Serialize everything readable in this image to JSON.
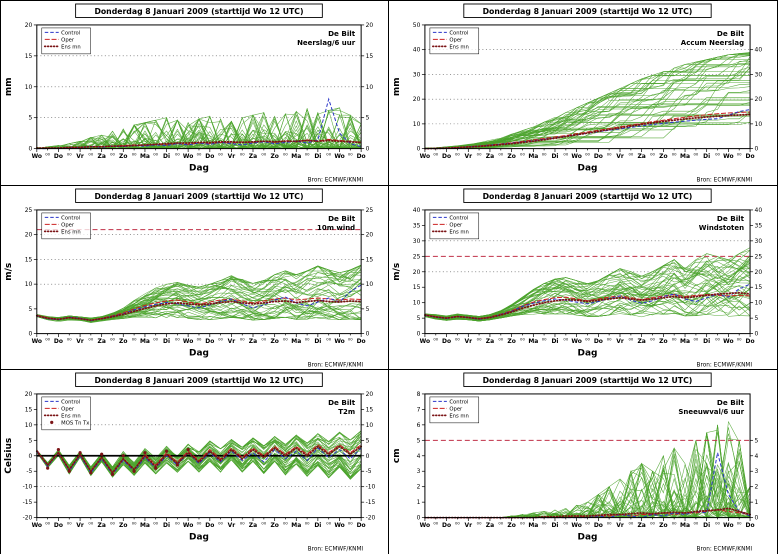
{
  "shared": {
    "title": "Donderdag  8 Januari  2009  (starttijd  Wo 12 UTC)",
    "station": "De Bilt",
    "source": "Bron: ECMWF/KNMI",
    "x_label": "Dag",
    "day_labels": [
      "Wo",
      "Do",
      "Vr",
      "Za",
      "Zo",
      "Ma",
      "Di",
      "Wo",
      "Do",
      "Vr",
      "Za",
      "Zo",
      "Ma",
      "Di",
      "Wo",
      "Do"
    ],
    "minor_hour_label": "00",
    "x_step_days": 0.5,
    "x_max_days": 15,
    "legend_labels": {
      "control": "Control",
      "oper": "Oper",
      "ens_mean": "Ens mn",
      "mos": "MOS Tn Tx"
    },
    "colors": {
      "member": "#4aa32b",
      "control": "#2a35c8",
      "oper": "#cc2020",
      "ens_mean": "#7b1416",
      "threshold": "#c03048",
      "gridline": "#555555",
      "source_text": "#2233cc",
      "frame": "#000000"
    }
  },
  "chart_data": [
    {
      "type": "line",
      "variable": "Neerslag/6 uur",
      "ylabel": "mm",
      "ylim": [
        0,
        20
      ],
      "yticks_left": [
        0,
        5,
        10,
        15,
        20
      ],
      "yticks_right": [
        0,
        5,
        10,
        15,
        20
      ],
      "dotted_gridlines": [
        5,
        10,
        15
      ],
      "threshold": null,
      "zero_line": false,
      "member_style": "spiky",
      "members_count": 46,
      "monotonic": false,
      "legend": [
        "control",
        "oper",
        "ens_mean"
      ],
      "series": {
        "ens_mean": [
          0.1,
          0.1,
          0.1,
          0.2,
          0.2,
          0.3,
          0.3,
          0.4,
          0.4,
          0.5,
          0.6,
          0.7,
          0.8,
          0.9,
          0.9,
          1.0,
          1.0,
          1.1,
          1.1,
          1.0,
          1.1,
          1.2,
          1.1,
          1.2,
          1.2,
          1.3,
          1.2,
          1.3,
          1.2,
          1.1,
          1.0
        ],
        "control": [
          0.0,
          0.0,
          0.1,
          0.1,
          0.2,
          0.3,
          0.2,
          0.4,
          0.3,
          0.5,
          0.4,
          0.6,
          0.5,
          0.8,
          0.6,
          0.9,
          0.7,
          1.0,
          0.8,
          0.6,
          0.9,
          1.1,
          0.8,
          1.0,
          1.2,
          0.9,
          1.4,
          8.0,
          2.5,
          0.8,
          0.3
        ],
        "oper": [
          0.0,
          0.1,
          0.1,
          0.2,
          0.2,
          0.3,
          0.3,
          0.4,
          0.5,
          0.6,
          0.5,
          0.7,
          0.6,
          0.8,
          0.7,
          0.9,
          0.8,
          1.0,
          0.9,
          1.1,
          1.0,
          1.2,
          1.0,
          1.3,
          1.1,
          1.4,
          1.2,
          1.5,
          1.3,
          1.2,
          1.0
        ]
      },
      "envelope": {
        "low": null,
        "high": [
          0.2,
          0.3,
          0.5,
          0.8,
          1.2,
          1.8,
          2.2,
          2.8,
          3.2,
          3.8,
          4.2,
          4.6,
          5.0,
          4.6,
          4.2,
          4.8,
          5.2,
          4.8,
          4.4,
          5.0,
          5.4,
          5.8,
          5.2,
          5.6,
          6.0,
          6.4,
          5.8,
          6.2,
          6.6,
          5.4,
          4.0
        ]
      }
    },
    {
      "type": "line",
      "variable": "Accum Neerslag",
      "ylabel": "mm",
      "ylim": [
        0,
        50
      ],
      "yticks_left": [
        0,
        10,
        20,
        30,
        40,
        50
      ],
      "yticks_right": [
        0,
        10,
        20,
        30,
        40
      ],
      "dotted_gridlines": [
        10,
        20,
        30,
        40
      ],
      "threshold": null,
      "zero_line": false,
      "member_style": "smooth",
      "members_count": 46,
      "monotonic": true,
      "legend": [
        "control",
        "oper",
        "ens_mean"
      ],
      "series": {
        "ens_mean": [
          0,
          0.1,
          0.2,
          0.4,
          0.6,
          0.9,
          1.2,
          1.6,
          2.0,
          2.5,
          3.0,
          3.6,
          4.2,
          4.9,
          5.6,
          6.3,
          7.0,
          7.7,
          8.4,
          9.1,
          9.8,
          10.4,
          11.0,
          11.5,
          12.0,
          12.4,
          12.8,
          13.1,
          13.4,
          13.6,
          13.8
        ],
        "control": [
          0,
          0.1,
          0.2,
          0.4,
          0.7,
          1.0,
          1.4,
          1.8,
          2.2,
          2.7,
          3.2,
          3.8,
          4.4,
          5.0,
          5.6,
          6.2,
          6.8,
          7.4,
          8.0,
          8.6,
          9.2,
          9.7,
          10.2,
          10.7,
          11.1,
          11.5,
          11.8,
          12.1,
          13.5,
          15.0,
          15.8
        ],
        "oper": [
          0,
          0.1,
          0.3,
          0.5,
          0.8,
          1.1,
          1.5,
          1.9,
          2.4,
          2.9,
          3.5,
          4.1,
          4.7,
          5.3,
          6.0,
          6.7,
          7.4,
          8.1,
          8.8,
          9.5,
          10.2,
          10.9,
          11.5,
          12.1,
          12.7,
          13.2,
          13.7,
          14.1,
          14.4,
          14.6,
          14.8
        ]
      },
      "envelope": {
        "low": [
          0,
          0,
          0,
          0.1,
          0.1,
          0.2,
          0.2,
          0.3,
          0.4,
          0.5,
          0.6,
          0.7,
          0.8,
          0.9,
          1.0,
          1.1,
          1.2,
          1.4,
          1.6,
          1.8,
          2.0,
          2.2,
          2.4,
          2.6,
          2.8,
          3.0,
          3.2,
          3.4,
          3.6,
          3.8,
          4.0
        ],
        "high": [
          0.2,
          0.4,
          0.8,
          1.2,
          1.8,
          2.5,
          3.5,
          4.5,
          6.0,
          7.5,
          9.0,
          11,
          13,
          15,
          17,
          19,
          21,
          23,
          25,
          27,
          29,
          30.5,
          32,
          33.5,
          35,
          36,
          37,
          38,
          39,
          39.5,
          40
        ]
      }
    },
    {
      "type": "line",
      "variable": "10m wind",
      "ylabel": "m/s",
      "ylim": [
        0,
        25
      ],
      "yticks_left": [
        0,
        5,
        10,
        15,
        20,
        25
      ],
      "yticks_right": [
        0,
        5,
        10,
        15,
        20,
        25
      ],
      "dotted_gridlines": [
        10,
        15,
        20
      ],
      "threshold": 21,
      "zero_line": false,
      "member_style": "smooth",
      "members_count": 46,
      "monotonic": false,
      "legend": [
        "control",
        "oper",
        "ens_mean"
      ],
      "series": {
        "ens_mean": [
          3.6,
          3.1,
          2.9,
          3.2,
          3.0,
          2.7,
          3.0,
          3.4,
          3.9,
          4.5,
          5.1,
          5.6,
          6.0,
          6.2,
          6.0,
          5.8,
          6.0,
          6.3,
          6.5,
          6.2,
          6.0,
          6.2,
          6.5,
          6.6,
          6.3,
          6.5,
          6.7,
          6.5,
          6.4,
          6.6,
          6.5
        ],
        "control": [
          3.6,
          3.0,
          2.8,
          3.3,
          3.1,
          2.6,
          3.0,
          3.5,
          4.0,
          4.8,
          5.4,
          5.9,
          6.3,
          6.0,
          5.6,
          5.2,
          5.8,
          6.5,
          7.0,
          6.0,
          5.2,
          5.8,
          6.8,
          7.4,
          6.2,
          5.6,
          6.4,
          7.2,
          6.4,
          8.5,
          9.8
        ],
        "oper": [
          3.7,
          3.2,
          2.9,
          3.3,
          3.1,
          2.7,
          3.1,
          3.6,
          4.2,
          5.0,
          5.7,
          6.2,
          6.6,
          6.8,
          6.4,
          6.0,
          6.4,
          6.8,
          7.0,
          6.6,
          6.2,
          6.6,
          7.0,
          7.2,
          6.8,
          7.0,
          7.2,
          7.0,
          6.8,
          7.0,
          6.9
        ]
      },
      "envelope": {
        "low": [
          3.3,
          2.7,
          2.4,
          2.7,
          2.6,
          2.2,
          2.5,
          2.8,
          3.0,
          3.2,
          3.2,
          3.0,
          3.0,
          3.0,
          2.8,
          2.6,
          2.6,
          2.8,
          3.0,
          2.8,
          2.5,
          2.6,
          2.8,
          3.0,
          2.6,
          2.6,
          2.8,
          2.6,
          2.5,
          2.6,
          2.5
        ],
        "high": [
          3.9,
          3.5,
          3.3,
          3.6,
          3.4,
          3.2,
          3.5,
          4.2,
          5.2,
          6.8,
          8.2,
          9.4,
          10.2,
          10.6,
          10.0,
          9.6,
          10.2,
          11.0,
          12.0,
          11.2,
          10.4,
          11.0,
          12.2,
          13.0,
          12.2,
          13.0,
          14.0,
          13.2,
          12.6,
          13.2,
          14.2
        ]
      }
    },
    {
      "type": "line",
      "variable": "Windstoten",
      "ylabel": "m/s",
      "ylim": [
        0,
        40
      ],
      "yticks_left": [
        0,
        5,
        10,
        15,
        20,
        25,
        30,
        35,
        40
      ],
      "yticks_right": [
        0,
        5,
        10,
        15,
        20,
        25,
        30,
        35,
        40
      ],
      "dotted_gridlines": [
        20,
        30
      ],
      "threshold": 25,
      "zero_line": false,
      "member_style": "smooth",
      "members_count": 46,
      "monotonic": false,
      "legend": [
        "control",
        "oper",
        "ens_mean"
      ],
      "series": {
        "ens_mean": [
          6.0,
          5.4,
          5.0,
          5.5,
          5.2,
          4.8,
          5.2,
          6.0,
          7.0,
          8.2,
          9.2,
          10.0,
          10.6,
          11.0,
          10.8,
          10.4,
          10.8,
          11.2,
          11.6,
          11.2,
          10.8,
          11.2,
          11.6,
          12.0,
          11.6,
          12.0,
          12.4,
          12.8,
          13.0,
          13.2,
          12.8
        ],
        "control": [
          6.0,
          5.3,
          4.9,
          5.5,
          5.2,
          4.6,
          5.2,
          6.2,
          7.2,
          8.8,
          9.8,
          10.6,
          11.2,
          10.8,
          10.2,
          9.6,
          10.4,
          11.4,
          12.2,
          10.8,
          9.8,
          10.6,
          12.0,
          12.8,
          11.2,
          10.4,
          11.6,
          12.8,
          11.8,
          14.5,
          16.0
        ],
        "oper": [
          6.1,
          5.5,
          5.1,
          5.6,
          5.3,
          4.9,
          5.4,
          6.3,
          7.4,
          9.0,
          10.2,
          11.0,
          11.6,
          11.8,
          11.2,
          10.6,
          11.2,
          11.8,
          12.2,
          11.6,
          11.0,
          11.6,
          12.2,
          12.6,
          12.0,
          12.4,
          12.6,
          12.4,
          12.2,
          12.4,
          12.2
        ]
      },
      "envelope": {
        "low": [
          5.4,
          4.6,
          4.2,
          4.6,
          4.4,
          4.0,
          4.4,
          5.0,
          5.6,
          6.0,
          6.0,
          6.0,
          6.0,
          6.0,
          5.6,
          5.2,
          5.2,
          5.6,
          6.0,
          5.6,
          5.0,
          5.2,
          5.6,
          6.0,
          5.2,
          5.2,
          5.6,
          5.2,
          5.0,
          5.2,
          5.0
        ],
        "high": [
          6.6,
          6.2,
          5.8,
          6.4,
          6.0,
          5.6,
          6.2,
          7.5,
          9.5,
          12,
          14.5,
          16.5,
          18,
          18.5,
          17.5,
          16.5,
          17.5,
          19.5,
          21.5,
          20.5,
          19,
          20.5,
          22.5,
          24.5,
          22.5,
          24.5,
          26.5,
          25.5,
          24.5,
          26.5,
          28.5
        ]
      }
    },
    {
      "type": "line",
      "variable": "T2m",
      "ylabel": "Celsius",
      "ylim": [
        -20,
        20
      ],
      "yticks_left": [
        -20,
        -15,
        -10,
        -5,
        0,
        5,
        10,
        15,
        20
      ],
      "yticks_right": [
        -20,
        -15,
        -10,
        -5,
        0,
        5,
        10,
        15,
        20
      ],
      "dotted_gridlines": [
        -10,
        10
      ],
      "threshold": null,
      "zero_line": true,
      "member_style": "smooth",
      "members_count": 46,
      "monotonic": false,
      "legend": [
        "control",
        "oper",
        "ens_mean",
        "mos"
      ],
      "series": {
        "ens_mean": [
          1.5,
          -3,
          1,
          -4.5,
          0.5,
          -5,
          -0.5,
          -5.5,
          -1,
          -4.5,
          0,
          -3.5,
          0.5,
          -2.5,
          1,
          -2,
          1.5,
          -1.5,
          2,
          -1,
          2,
          -0.5,
          2.5,
          0,
          2.5,
          0,
          3,
          0.5,
          3,
          0.5,
          3
        ],
        "control": [
          1.5,
          -3.5,
          1,
          -5,
          0,
          -5.5,
          -1,
          -6,
          -1.5,
          -5,
          -0.5,
          -4,
          0,
          -3,
          1,
          -2.5,
          1,
          -2,
          1.5,
          -1.5,
          1,
          -2,
          2,
          -1,
          1.5,
          -1.5,
          2.5,
          -0.5,
          2,
          -1,
          2.5
        ],
        "oper": [
          1.8,
          -3,
          1.2,
          -4.5,
          0.5,
          -5,
          -0.5,
          -5.5,
          -1,
          -4.5,
          0.5,
          -3,
          1,
          -2,
          1.5,
          -1.5,
          2,
          -1,
          2.5,
          -0.5,
          2.5,
          0,
          3,
          0.5,
          3,
          0.5,
          3.5,
          1,
          3.5,
          1,
          3.5
        ]
      },
      "envelope": {
        "low": [
          1,
          -4,
          0,
          -6,
          -0.5,
          -6.5,
          -2,
          -7,
          -3,
          -6.5,
          -2.5,
          -6,
          -2.5,
          -5.5,
          -2,
          -5.5,
          -2,
          -5.5,
          -1.5,
          -5.5,
          -2,
          -6,
          -2,
          -6.5,
          -3,
          -7,
          -3.5,
          -7.5,
          -4,
          -8,
          -4.5
        ],
        "high": [
          2,
          -2,
          2,
          -3,
          1.5,
          -3.5,
          1,
          -3.5,
          1.5,
          -2,
          2.5,
          -0.5,
          3.5,
          0.5,
          4,
          1.5,
          5,
          2.5,
          5.5,
          3,
          6,
          3.5,
          6.5,
          4,
          7,
          4.5,
          7.5,
          5,
          8,
          5.5,
          8.5
        ]
      },
      "mos_points": [
        [
          0.5,
          -4
        ],
        [
          1,
          2
        ],
        [
          1.5,
          -5
        ],
        [
          2,
          1
        ],
        [
          2.5,
          -5.5
        ],
        [
          3,
          0.5
        ],
        [
          3.5,
          -6
        ],
        [
          4,
          0
        ],
        [
          4.5,
          -5
        ],
        [
          5,
          1
        ],
        [
          5.5,
          -4
        ],
        [
          6,
          1.5
        ],
        [
          6.5,
          -3
        ],
        [
          7,
          2
        ]
      ]
    },
    {
      "type": "line",
      "variable": "Sneeuwval/6 uur",
      "ylabel": "cm",
      "ylim": [
        0,
        8
      ],
      "yticks_left": [
        0,
        1,
        2,
        3,
        4,
        5,
        6,
        7,
        8
      ],
      "yticks_right": [
        0,
        1,
        2,
        3,
        4,
        5
      ],
      "dotted_gridlines": [],
      "threshold": 5,
      "zero_line": false,
      "member_style": "spiky",
      "members_count": 46,
      "monotonic": false,
      "legend": [
        "control",
        "oper",
        "ens_mean"
      ],
      "series": {
        "ens_mean": [
          0,
          0,
          0,
          0,
          0,
          0,
          0,
          0,
          0,
          0,
          0,
          0.05,
          0.05,
          0.1,
          0.1,
          0.1,
          0.15,
          0.2,
          0.2,
          0.25,
          0.3,
          0.25,
          0.3,
          0.35,
          0.3,
          0.4,
          0.45,
          0.5,
          0.6,
          0.4,
          0.2
        ],
        "control": [
          0,
          0,
          0,
          0,
          0,
          0,
          0,
          0,
          0,
          0,
          0,
          0,
          0,
          0,
          0,
          0,
          0.1,
          0,
          0.2,
          0.1,
          0,
          0.2,
          0.1,
          0.3,
          0.2,
          0.4,
          0.3,
          4.2,
          1.5,
          0.4,
          0.1
        ],
        "oper": [
          0,
          0,
          0,
          0,
          0,
          0,
          0,
          0,
          0,
          0,
          0,
          0,
          0,
          0,
          0.1,
          0,
          0.1,
          0.1,
          0.2,
          0.1,
          0.2,
          0.2,
          0.3,
          0.2,
          0.3,
          0.3,
          0.4,
          0.5,
          0.4,
          0.3,
          0.2
        ]
      },
      "envelope": {
        "low": null,
        "high": [
          0,
          0,
          0,
          0,
          0,
          0,
          0,
          0,
          0.1,
          0.2,
          0.3,
          0.4,
          0.5,
          0.6,
          0.8,
          1.0,
          1.5,
          2.0,
          2.5,
          3.0,
          3.5,
          3.0,
          4.0,
          4.5,
          3.5,
          5.0,
          5.5,
          6.0,
          6.2,
          5.0,
          2.0
        ]
      }
    }
  ]
}
